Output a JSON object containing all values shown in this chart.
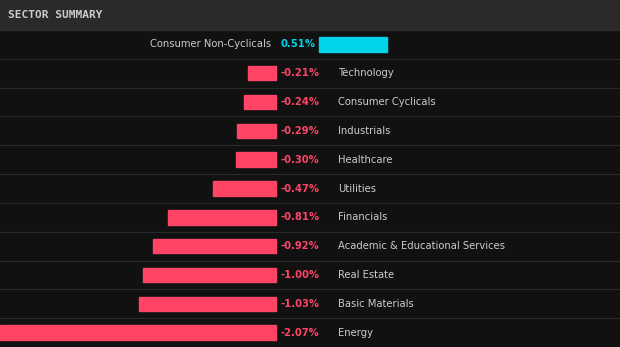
{
  "title": "SECTOR SUMMARY",
  "sectors": [
    {
      "name": "Consumer Non-Cyclicals",
      "value": 0.51,
      "label": "0.51%",
      "positive": true
    },
    {
      "name": "Technology",
      "value": -0.21,
      "label": "-0.21%",
      "positive": false
    },
    {
      "name": "Consumer Cyclicals",
      "value": -0.24,
      "label": "-0.24%",
      "positive": false
    },
    {
      "name": "Industrials",
      "value": -0.29,
      "label": "-0.29%",
      "positive": false
    },
    {
      "name": "Healthcare",
      "value": -0.3,
      "label": "-0.30%",
      "positive": false
    },
    {
      "name": "Utilities",
      "value": -0.47,
      "label": "-0.47%",
      "positive": false
    },
    {
      "name": "Financials",
      "value": -0.81,
      "label": "-0.81%",
      "positive": false
    },
    {
      "name": "Academic & Educational Services",
      "value": -0.92,
      "label": "-0.92%",
      "positive": false
    },
    {
      "name": "Real Estate",
      "value": -1.0,
      "label": "-1.00%",
      "positive": false
    },
    {
      "name": "Basic Materials",
      "value": -1.03,
      "label": "-1.03%",
      "positive": false
    },
    {
      "name": "Energy",
      "value": -2.07,
      "label": "-2.07%",
      "positive": false
    }
  ],
  "bg_color": "#111111",
  "header_bg": "#2a2a2a",
  "title_color": "#cccccc",
  "title_fontsize": 8,
  "positive_color": "#00d4e8",
  "negative_color": "#ff4466",
  "label_positive_color": "#00d4e8",
  "label_negative_color": "#ff4466",
  "sector_name_color": "#cccccc",
  "bar_max_abs": 2.07,
  "separator_color": "#2a2a2a"
}
